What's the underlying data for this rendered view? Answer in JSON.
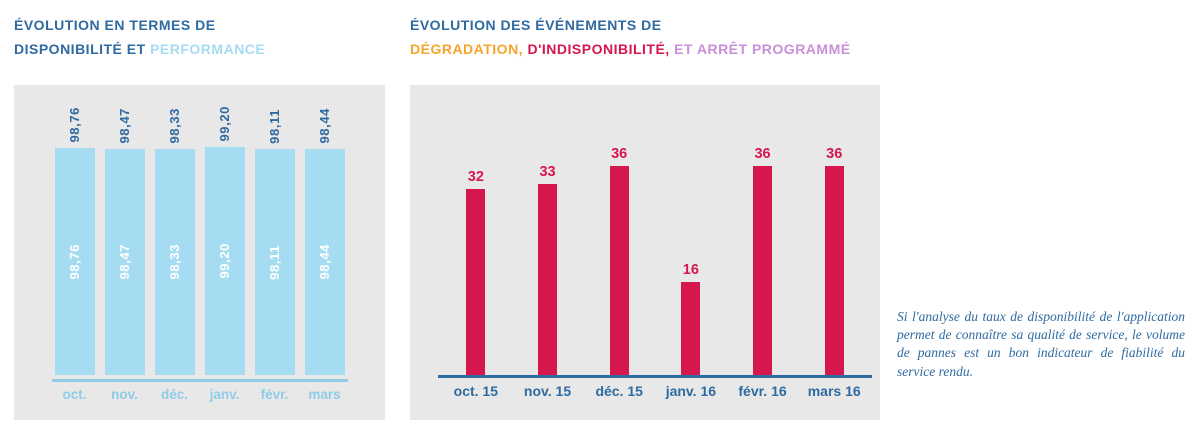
{
  "left_chart": {
    "title_line1": "ÉVOLUTION EN TERMES DE",
    "title_line2_part1": "DISPONIBILITÉ ET ",
    "title_line2_part2": "PERFORMANCE"
  },
  "right_chart": {
    "title_line1": "ÉVOLUTION DES ÉVÉNEMENTS DE",
    "title_line2_part1": "DÉGRADATION, ",
    "title_line2_part2": "D'INDISPONIBILITÉ, ",
    "title_line2_part3": "ET ARRÊT PROGRAMMÉ"
  },
  "note": {
    "text": "Si l'analyse du taux de disponibilité de l'application permet de connaître sa qualité de service, le volume de pannes est un bon indicateur de fiabilité du service rendu."
  },
  "colors": {
    "dark_blue": "#2f6aa0",
    "light_blue_bar": "#a6dcf2",
    "light_blue_axis": "#8fcce8",
    "crimson": "#d5174e",
    "orange": "#f5a42c",
    "purple": "#c98fd9",
    "panel_gray": "#e8e8e8"
  },
  "chart_data": [
    {
      "type": "bar",
      "title": "ÉVOLUTION EN TERMES DE DISPONIBILITÉ ET PERFORMANCE",
      "categories": [
        "oct.",
        "nov.",
        "déc.",
        "janv.",
        "févr.",
        "mars"
      ],
      "values": [
        98.76,
        98.47,
        98.33,
        99.2,
        98.11,
        98.44
      ],
      "value_labels": [
        "98,76",
        "98,47",
        "98,33",
        "99,20",
        "98,11",
        "98,44"
      ],
      "ylim": [
        0,
        100
      ],
      "xlabel": "",
      "ylabel": "",
      "grid": false,
      "legend": "none",
      "bar_color": "#a6dcf2"
    },
    {
      "type": "bar",
      "title": "ÉVOLUTION DES ÉVÉNEMENTS DE DÉGRADATION, D'INDISPONIBILITÉ, ET ARRÊT PROGRAMMÉ",
      "categories": [
        "oct. 15",
        "nov. 15",
        "déc. 15",
        "janv. 16",
        "févr. 16",
        "mars 16"
      ],
      "values": [
        32,
        33,
        36,
        16,
        36,
        36
      ],
      "ylim": [
        0,
        40
      ],
      "xlabel": "",
      "ylabel": "",
      "grid": false,
      "legend": "none",
      "bar_color": "#d5174e"
    }
  ]
}
